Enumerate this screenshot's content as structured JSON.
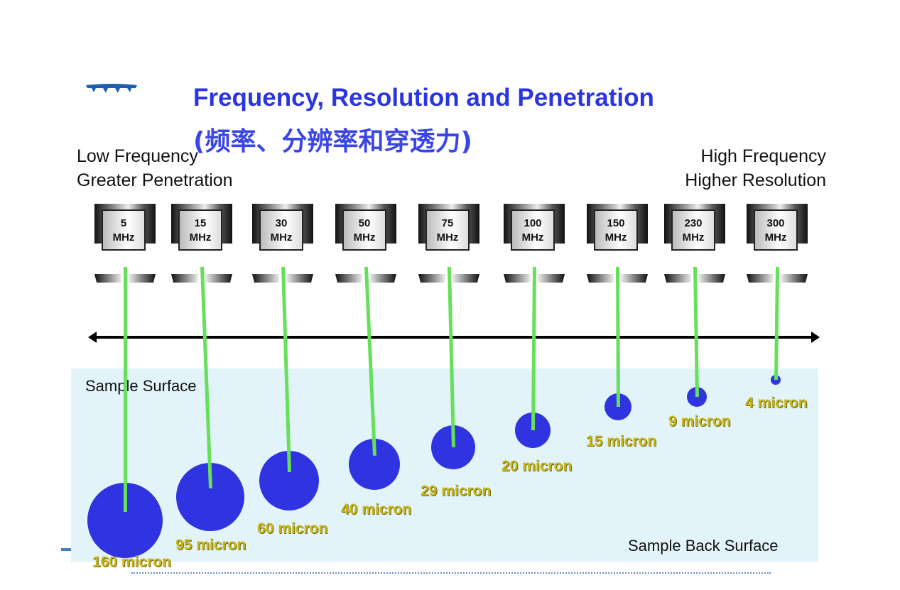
{
  "title": "Frequency, Resolution and Penetration",
  "subtitle": "(频率、分辨率和穿透力)",
  "left_label": {
    "line1": "Low Frequency",
    "line2": "Greater Penetration"
  },
  "right_label": {
    "line1": "High Frequency",
    "line2": "Higher Resolution"
  },
  "sample_surface": "Sample Surface",
  "sample_back_surface": "Sample Back Surface",
  "colors": {
    "title": "#2b35e0",
    "beam": "#66e05a",
    "spot": "#2f33e0",
    "label": "#c7b81a",
    "sample": "#e3f3fa"
  },
  "unit": "MHz",
  "transducers": [
    {
      "freq": "5",
      "spot": "160 micron"
    },
    {
      "freq": "15",
      "spot": "95 micron"
    },
    {
      "freq": "30",
      "spot": "60 micron"
    },
    {
      "freq": "50",
      "spot": "40 micron"
    },
    {
      "freq": "75",
      "spot": "29 micron"
    },
    {
      "freq": "100",
      "spot": "20 micron"
    },
    {
      "freq": "150",
      "spot": "15 micron"
    },
    {
      "freq": "230",
      "spot": "9 micron"
    },
    {
      "freq": "300",
      "spot": "4 micron"
    }
  ]
}
